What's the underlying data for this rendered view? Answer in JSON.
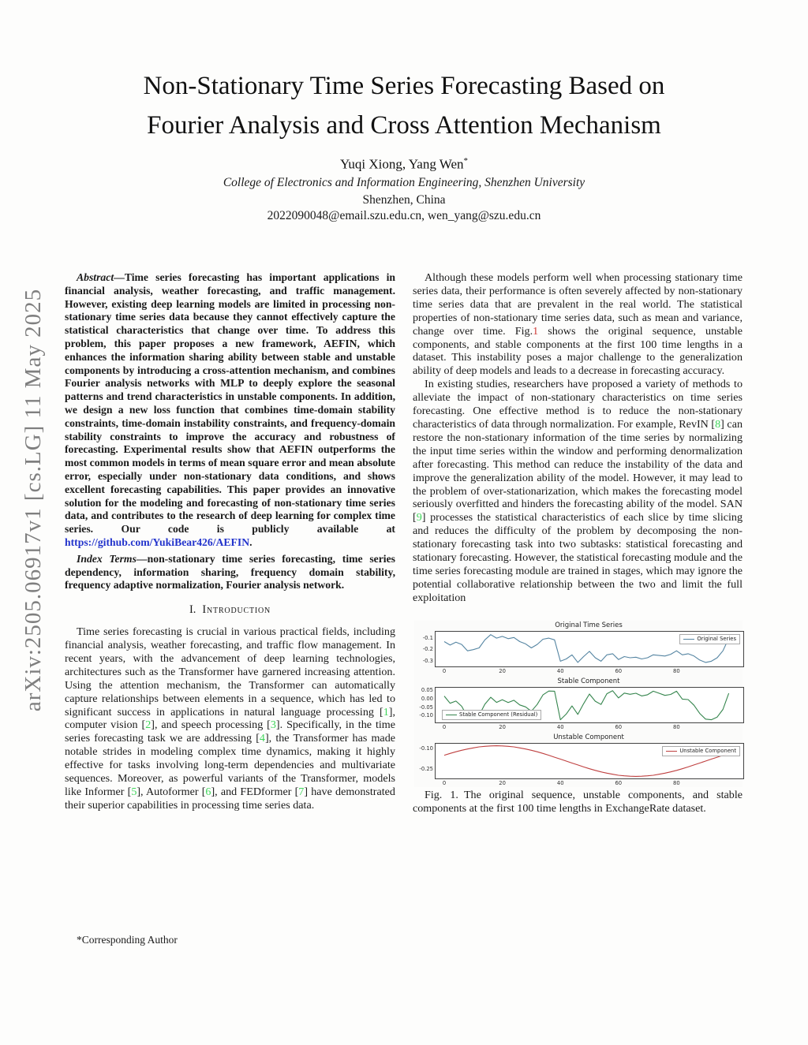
{
  "watermark": {
    "text": "arXiv:2505.06917v1  [cs.LG]  11 May 2025"
  },
  "header": {
    "title_line1": "Non-Stationary Time Series Forecasting Based on",
    "title_line2": "Fourier Analysis and Cross Attention Mechanism",
    "authors": "Yuqi Xiong, Yang Wen",
    "authors_mark": "*",
    "affiliation": "College of Electronics and Information Engineering, Shenzhen University",
    "location": "Shenzhen, China",
    "emails": "2022090048@email.szu.edu.cn, wen_yang@szu.edu.cn"
  },
  "left": {
    "abstract": [
      {
        "t": "Abstract",
        "c": "lead"
      },
      {
        "t": "—Time series forecasting has important applications in financial analysis, weather forecasting, and traffic management. However, existing deep learning models are limited in processing non-stationary time series data because they cannot effectively capture the statistical characteristics that change over time. To address this problem, this paper proposes a new framework, AEFIN, which enhances the information sharing ability between stable and unstable components by introducing a cross-attention mechanism, and combines Fourier analysis networks with MLP to deeply explore the seasonal patterns and trend characteristics in unstable components. In addition, we design a new loss function that combines time-domain stability constraints, time-domain instability constraints, and frequency-domain stability constraints to improve the accuracy and robustness of forecasting. Experimental results show that AEFIN outperforms the most common models in terms of mean square error and mean absolute error, especially under non-stationary data conditions, and shows excellent forecasting capabilities. This paper provides an innovative solution for the modeling and forecasting of non-stationary time series data, and contributes to the research of deep learning for complex time series. Our code is publicly available at ",
        "c": ""
      },
      {
        "t": "https://github.com/YukiBear426/AEFIN",
        "c": "link"
      },
      {
        "t": ".",
        "c": ""
      }
    ],
    "index_terms": [
      {
        "t": "Index Terms",
        "c": "lead"
      },
      {
        "t": "—non-stationary time series forecasting, time series dependency, information sharing, frequency domain stability, frequency adaptive normalization, Fourier analysis network.",
        "c": ""
      }
    ],
    "intro_heading": {
      "number": "I.",
      "label": "Introduction"
    },
    "intro_par": [
      {
        "t": "Time series forecasting is crucial in various practical fields, including financial analysis, weather forecasting, and traffic flow management. In recent years, with the advancement of deep learning technologies, architectures such as the Transformer have garnered increasing attention. Using the attention mechanism, the Transformer can automatically capture relationships between elements in a sequence, which has led to significant success in applications in natural language processing [",
        "c": ""
      },
      {
        "t": "1",
        "c": "cite"
      },
      {
        "t": "], computer vision [",
        "c": ""
      },
      {
        "t": "2",
        "c": "cite"
      },
      {
        "t": "], and speech processing [",
        "c": ""
      },
      {
        "t": "3",
        "c": "cite"
      },
      {
        "t": "]. Specifically, in the time series forecasting task we are addressing [",
        "c": ""
      },
      {
        "t": "4",
        "c": "cite"
      },
      {
        "t": "], the Transformer has made notable strides in modeling complex time dynamics, making it highly effective for tasks involving long-term dependencies and multivariate sequences. Moreover, as powerful variants of the Transformer, models like Informer [",
        "c": ""
      },
      {
        "t": "5",
        "c": "cite"
      },
      {
        "t": "], Autoformer [",
        "c": ""
      },
      {
        "t": "6",
        "c": "cite"
      },
      {
        "t": "], and FEDformer [",
        "c": ""
      },
      {
        "t": "7",
        "c": "cite"
      },
      {
        "t": "] have demonstrated their superior capabilities in processing time series data.",
        "c": ""
      }
    ],
    "footnote": "*Corresponding Author"
  },
  "right": {
    "par_a": [
      {
        "t": "Although these models perform well when processing stationary time series data, their performance is often severely affected by non-stationary time series data that are prevalent in the real world. The statistical properties of non-stationary time series data, such as mean and variance, change over time. Fig.",
        "c": ""
      },
      {
        "t": "1",
        "c": "figref"
      },
      {
        "t": " shows the original sequence, unstable components, and stable components at the first 100 time lengths in a dataset. This instability poses a major challenge to the generalization ability of deep models and leads to a decrease in forecasting accuracy.",
        "c": ""
      }
    ],
    "par_b": [
      {
        "t": "In existing studies, researchers have proposed a variety of methods to alleviate the impact of non-stationary characteristics on time series forecasting. One effective method is to reduce the non-stationary characteristics of data through normalization. For example, RevIN [",
        "c": ""
      },
      {
        "t": "8",
        "c": "cite"
      },
      {
        "t": "] can restore the non-stationary information of the time series by normalizing the input time series within the window and performing denormalization after forecasting. This method can reduce the instability of the data and improve the generalization ability of the model. However, it may lead to the problem of over-stationarization, which makes the forecasting model seriously overfitted and hinders the forecasting ability of the model. SAN [",
        "c": ""
      },
      {
        "t": "9",
        "c": "cite"
      },
      {
        "t": "] processes the statistical characteristics of each slice by time slicing and reduces the difficulty of the problem by decomposing the non-stationary forecasting task into two subtasks: statistical forecasting and stationary forecasting. However, the statistical forecasting module and the time series forecasting module are trained in stages, which may ignore the potential collaborative relationship between the two and limit the full exploitation",
        "c": ""
      }
    ]
  },
  "figure": {
    "caption_label": "Fig. 1.",
    "caption_text": "The original sequence, unstable components, and stable components at the first 100 time lengths in ExchangeRate dataset."
  },
  "colors": {
    "cite_green": "#3fd65a",
    "link_blue": "#2334cc",
    "figref_red": "#cf3a36",
    "watermark_gray": "#7f7f7f"
  },
  "chart_data": [
    {
      "type": "line",
      "title": "Original Time Series",
      "legend": "Original Series",
      "legend_pos": "top-right",
      "color": "#5585a2",
      "x_start": 0,
      "x_step": 2,
      "xlim": [
        -3,
        103
      ],
      "ylim": [
        -0.345,
        -0.045
      ],
      "xticks": [
        0,
        20,
        40,
        60,
        80
      ],
      "ytick_vals": [
        -0.1,
        -0.2,
        -0.3
      ],
      "ytick_labels": [
        "-0.1",
        "-0.2",
        "-0.3"
      ],
      "values": [
        -0.13,
        -0.16,
        -0.135,
        -0.155,
        -0.21,
        -0.2,
        -0.185,
        -0.115,
        -0.07,
        -0.1,
        -0.085,
        -0.105,
        -0.095,
        -0.13,
        -0.15,
        -0.185,
        -0.155,
        -0.11,
        -0.1,
        -0.115,
        -0.3,
        -0.28,
        -0.245,
        -0.31,
        -0.26,
        -0.215,
        -0.27,
        -0.3,
        -0.245,
        -0.235,
        -0.285,
        -0.26,
        -0.27,
        -0.265,
        -0.28,
        -0.27,
        -0.245,
        -0.25,
        -0.255,
        -0.24,
        -0.21,
        -0.245,
        -0.235,
        -0.255,
        -0.29,
        -0.31,
        -0.3,
        -0.27,
        -0.21,
        -0.1
      ]
    },
    {
      "type": "line",
      "title": "Stable Component",
      "legend": "Stable Component (Residual)",
      "legend_pos": "bottom-left",
      "color": "#35854d",
      "x_start": 0,
      "x_step": 2,
      "xlim": [
        -3,
        103
      ],
      "ylim": [
        -0.14,
        0.068
      ],
      "xticks": [
        0,
        20,
        40,
        60,
        80
      ],
      "ytick_vals": [
        0.05,
        0.0,
        -0.05,
        -0.1
      ],
      "ytick_labels": [
        "0.05",
        "0.00",
        "-0.05",
        "-0.10"
      ],
      "values": [
        0.018,
        -0.025,
        -0.012,
        -0.043,
        -0.107,
        -0.105,
        -0.097,
        -0.031,
        0.011,
        -0.02,
        -0.004,
        -0.021,
        -0.007,
        -0.035,
        -0.047,
        -0.073,
        -0.032,
        0.025,
        0.048,
        0.047,
        -0.124,
        -0.09,
        -0.041,
        -0.092,
        -0.028,
        0.03,
        -0.013,
        -0.032,
        0.032,
        0.05,
        0.007,
        0.036,
        0.029,
        0.035,
        0.019,
        0.026,
        0.047,
        0.035,
        0.022,
        0.028,
        0.047,
        0.0,
        -0.003,
        -0.037,
        -0.086,
        -0.12,
        -0.124,
        -0.108,
        -0.062,
        0.035
      ]
    },
    {
      "type": "line",
      "title": "Unstable Component",
      "legend": "Unstable Component",
      "legend_pos": "top-right",
      "color": "#bf4040",
      "x_start": 0,
      "x_step": 2,
      "xlim": [
        -3,
        103
      ],
      "ylim": [
        -0.315,
        -0.065
      ],
      "xticks": [
        0,
        20,
        40,
        60,
        80
      ],
      "ytick_vals": [
        -0.1,
        -0.25
      ],
      "ytick_labels": [
        "-0.10",
        "-0.25"
      ],
      "values": [
        -0.148,
        -0.135,
        -0.123,
        -0.112,
        -0.103,
        -0.095,
        -0.088,
        -0.084,
        -0.081,
        -0.08,
        -0.081,
        -0.084,
        -0.088,
        -0.095,
        -0.103,
        -0.112,
        -0.123,
        -0.135,
        -0.148,
        -0.162,
        -0.176,
        -0.19,
        -0.204,
        -0.218,
        -0.232,
        -0.245,
        -0.257,
        -0.268,
        -0.277,
        -0.285,
        -0.292,
        -0.296,
        -0.299,
        -0.3,
        -0.299,
        -0.296,
        -0.292,
        -0.285,
        -0.277,
        -0.268,
        -0.257,
        -0.245,
        -0.232,
        -0.218,
        -0.204,
        -0.19,
        -0.176,
        -0.162,
        -0.148,
        -0.135
      ]
    }
  ]
}
